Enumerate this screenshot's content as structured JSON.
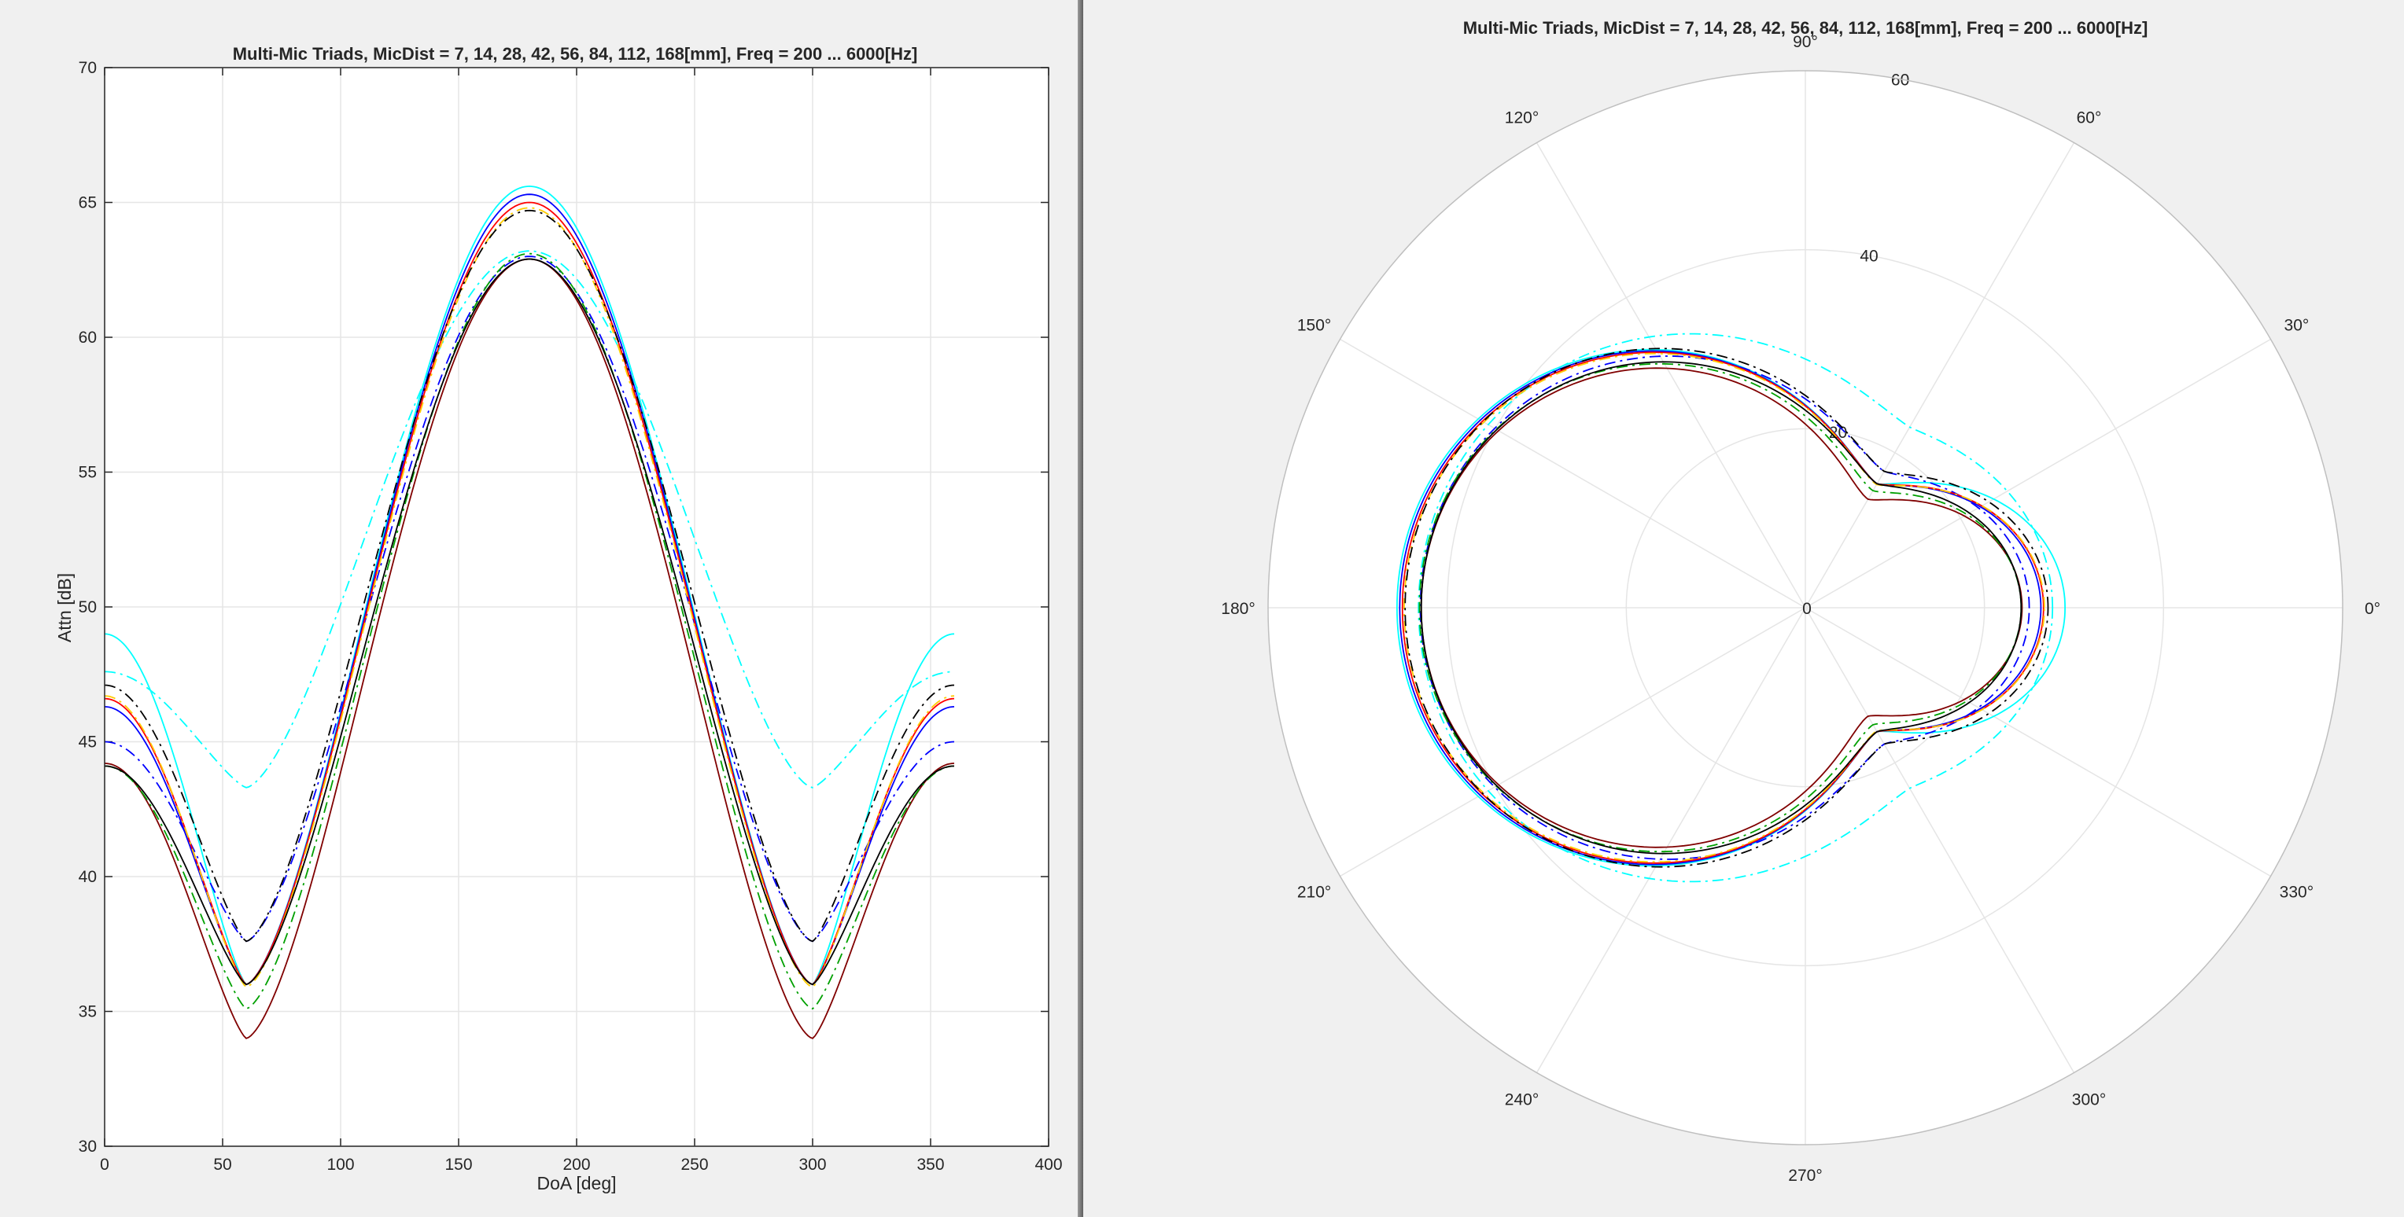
{
  "colors": {
    "black": "#000000",
    "cyan": "#00ffff",
    "blue": "#0000ff",
    "red": "#ff0000",
    "green": "#00a000",
    "yellow": "#ffcc00",
    "magenta": "#c000c0",
    "darkred": "#800000",
    "grid": "#e5e5e5",
    "axis": "#262626",
    "figure_bg": "#f0f0f0"
  },
  "chart_data": [
    {
      "type": "line",
      "title": "Multi-Mic Triads, MicDist = 7, 14, 28, 42, 56, 84, 112, 168[mm], Freq = 200 ... 6000[Hz]",
      "xlabel": "DoA [deg]",
      "ylabel": "Attn [dB]",
      "xlim": [
        0,
        400
      ],
      "ylim": [
        30,
        70
      ],
      "xticks": [
        "0",
        "50",
        "100",
        "150",
        "200",
        "250",
        "300",
        "350",
        "400"
      ],
      "yticks": [
        "30",
        "35",
        "40",
        "45",
        "50",
        "55",
        "60",
        "65",
        "70"
      ],
      "grid": true,
      "x_range_deg": [
        0,
        360
      ],
      "series": [
        {
          "color": "cyan",
          "style": "solid",
          "peak": 65.6,
          "edge": 49.0,
          "notch": 36.0
        },
        {
          "color": "cyan",
          "style": "dashdot",
          "peak": 63.2,
          "edge": 47.6,
          "notch": 43.3
        },
        {
          "color": "blue",
          "style": "solid",
          "peak": 65.3,
          "edge": 46.3,
          "notch": 36.0
        },
        {
          "color": "blue",
          "style": "dashdot",
          "peak": 63.0,
          "edge": 45.0,
          "notch": 37.6
        },
        {
          "color": "red",
          "style": "solid",
          "peak": 65.0,
          "edge": 46.6,
          "notch": 36.0
        },
        {
          "color": "yellow",
          "style": "dashdot",
          "peak": 64.8,
          "edge": 46.7,
          "notch": 35.9
        },
        {
          "color": "black",
          "style": "dashdot",
          "peak": 64.7,
          "edge": 47.1,
          "notch": 37.6
        },
        {
          "color": "darkred",
          "style": "solid",
          "peak": 62.9,
          "edge": 44.2,
          "notch": 34.0
        },
        {
          "color": "green",
          "style": "dashdot",
          "peak": 63.1,
          "edge": 44.1,
          "notch": 35.1
        },
        {
          "color": "black",
          "style": "solid",
          "peak": 62.9,
          "edge": 44.1,
          "notch": 36.0
        }
      ]
    },
    {
      "type": "polar",
      "title": "Multi-Mic Triads, MicDist = 7, 14, 28, 42, 56, 84, 112, 168[mm], Freq = 200 ... 6000[Hz]",
      "rlim": [
        0,
        60
      ],
      "rticks": [
        "0",
        "20",
        "40",
        "60"
      ],
      "theta_labels": [
        "0°",
        "30°",
        "60°",
        "90°",
        "120°",
        "150°",
        "180°",
        "210°",
        "240°",
        "270°",
        "300°",
        "330°"
      ],
      "grid": true,
      "series_note": "same series as the Cartesian plot, plotted as attenuation vs DoA"
    }
  ]
}
